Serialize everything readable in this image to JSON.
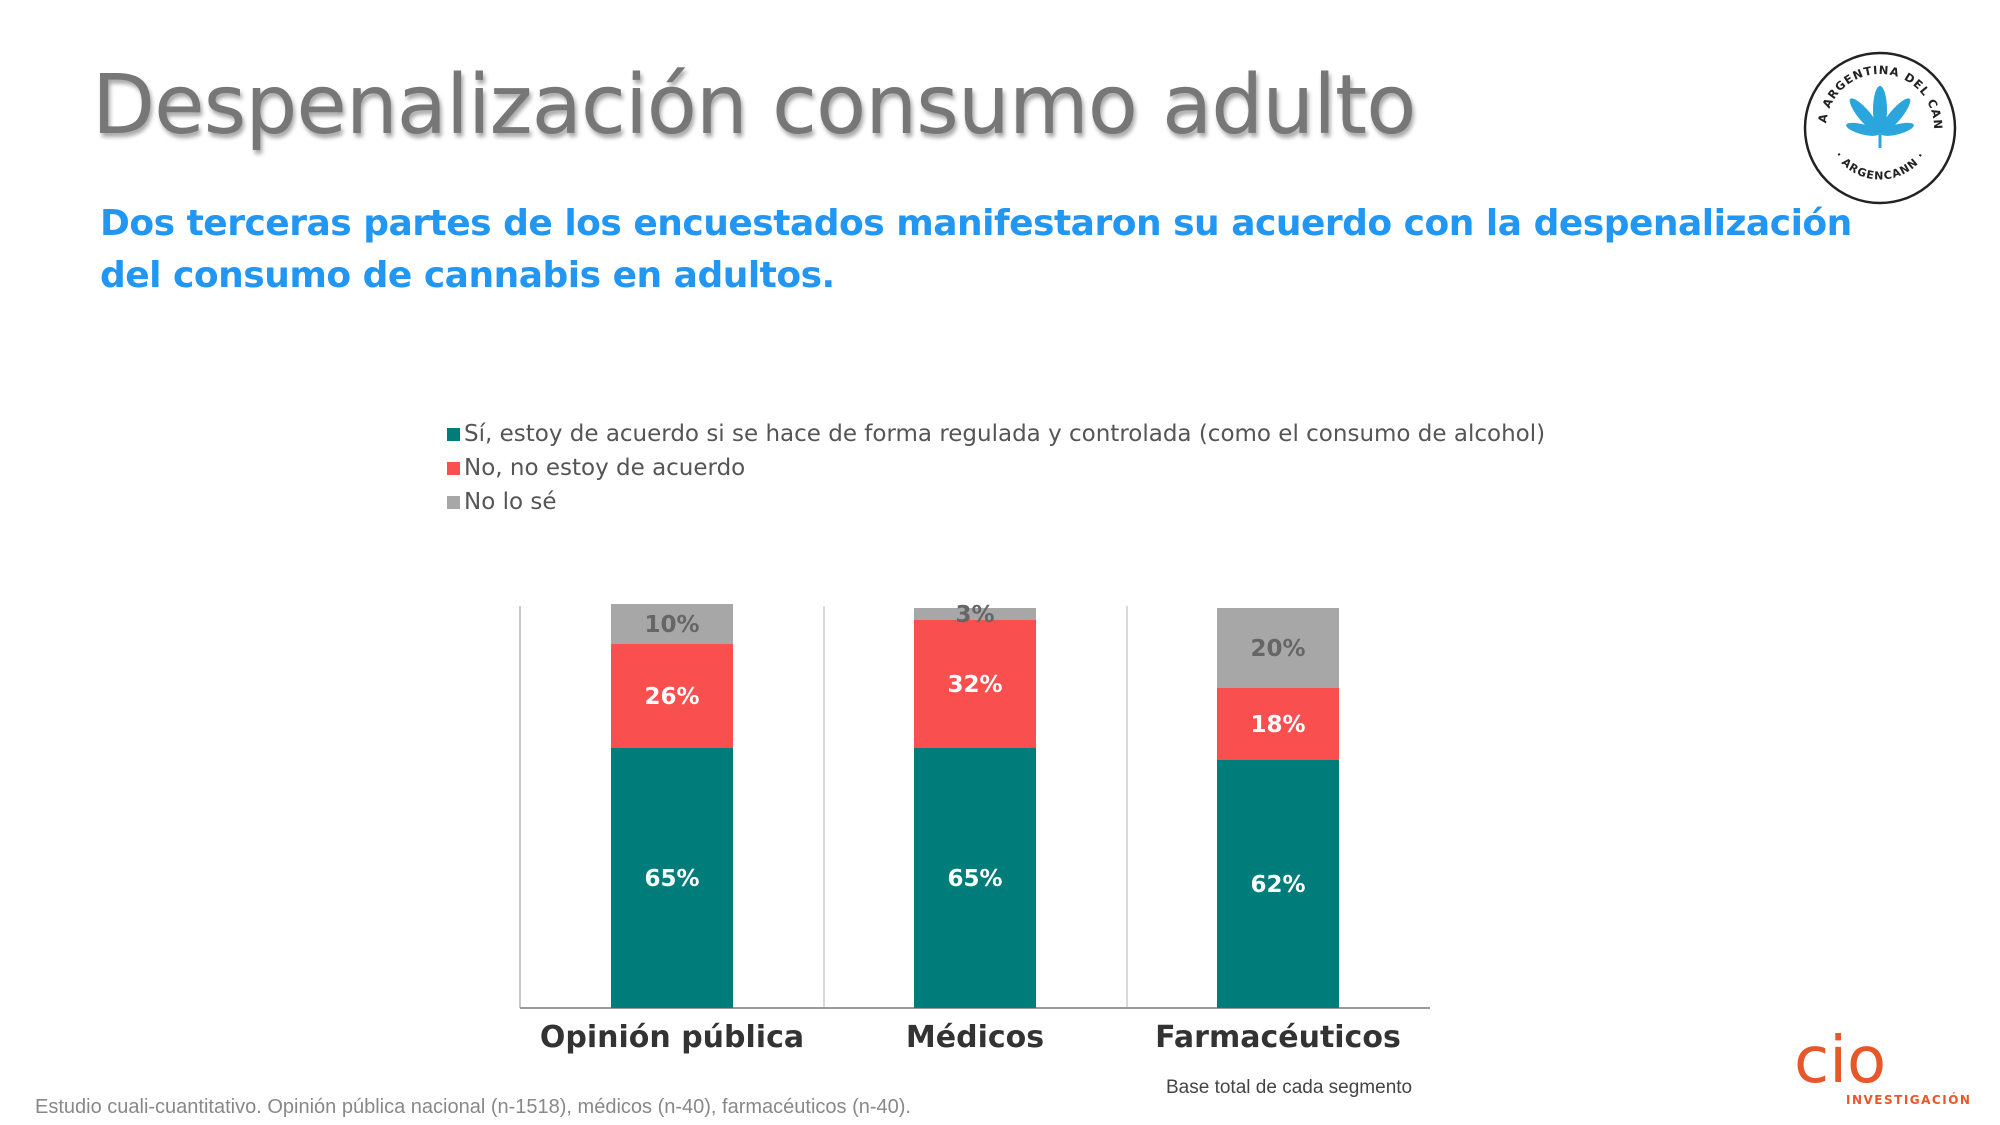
{
  "title": "Despenalización consumo adulto",
  "subtitle": "Dos terceras partes de los encuestados manifestaron su acuerdo con la despenalización del consumo de cannabis en adultos.",
  "logo": {
    "ring_text": "CAMARA ARGENTINA DEL CANNABIS",
    "bottom_text": "· ARGENCANN ·",
    "icon": "cannabis-leaf-icon"
  },
  "chart_data": {
    "type": "stacked-bar",
    "categories": [
      "Opinión pública",
      "Médicos",
      "Farmacéuticos"
    ],
    "series": [
      {
        "name": "Sí, estoy de acuerdo si se hace de forma regulada y controlada (como el consumo de alcohol)",
        "color": "#007d7a",
        "values": [
          65,
          65,
          62
        ],
        "labels": [
          "65%",
          "65%",
          "62%"
        ]
      },
      {
        "name": "No, no estoy de acuerdo",
        "color": "#f9504f",
        "values": [
          26,
          32,
          18
        ],
        "labels": [
          "26%",
          "32%",
          "18%"
        ]
      },
      {
        "name": "No lo sé",
        "color": "#a7a7a7",
        "values": [
          10,
          3,
          20
        ],
        "labels": [
          "10%",
          "3%",
          "20%"
        ]
      }
    ],
    "ylim": [
      0,
      100
    ],
    "legend_position": "top-left"
  },
  "base_note": "Base total de cada segmento",
  "footer": "Estudio cuali-cuantitativo. Opinión pública nacional (n-1518), médicos (n-40), farmacéuticos (n-40).",
  "brand": {
    "name": "cio",
    "tagline": "INVESTIGACIÓN",
    "color": "#e8572a"
  }
}
